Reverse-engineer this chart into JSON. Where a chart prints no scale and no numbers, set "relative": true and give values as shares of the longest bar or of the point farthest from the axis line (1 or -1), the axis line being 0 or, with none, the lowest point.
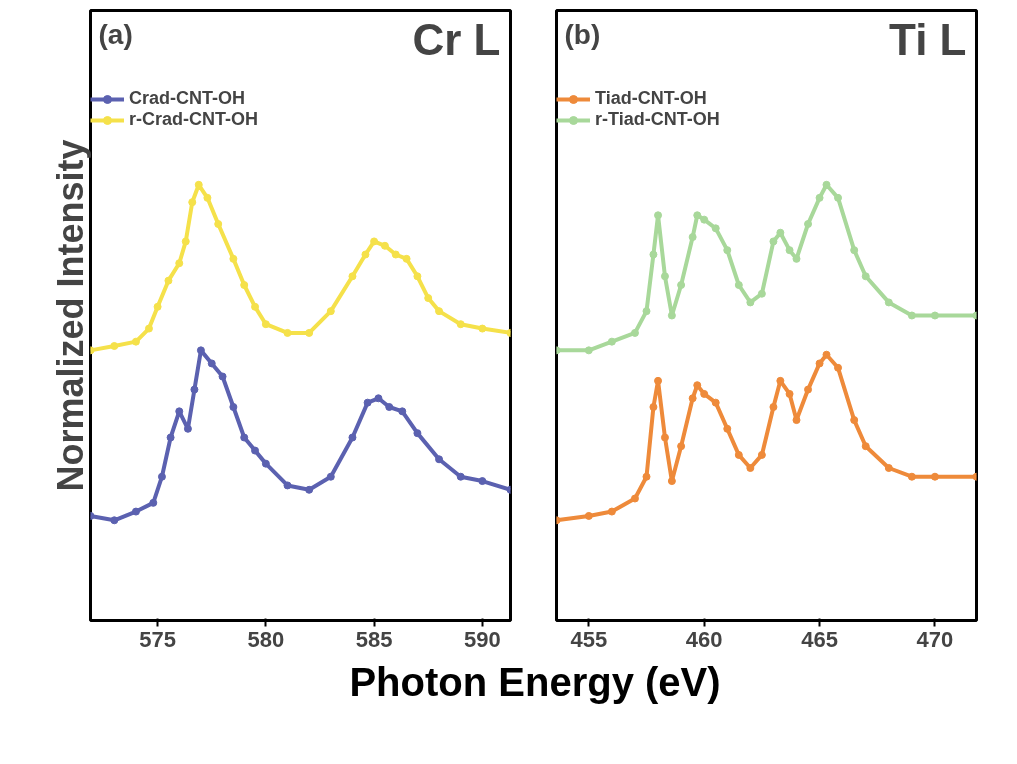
{
  "chart_data": [
    {
      "type": "line",
      "title": "Cr L",
      "annotations": [
        "(a)"
      ],
      "ylabel": "Normalized Intensity",
      "xlabel": "Photon Energy (eV)",
      "relative": true,
      "marker": "circle",
      "legend": "top left",
      "grid": false,
      "xlim": [
        571.9,
        591.3
      ],
      "xticks": [
        575,
        580,
        585,
        590
      ],
      "series": [
        {
          "name": "Crad-CNT-OH",
          "color": "#5b61b0",
          "x": [
            571.9,
            573,
            574,
            574.8,
            575.2,
            575.6,
            576,
            576.4,
            576.7,
            577,
            577.5,
            578,
            578.5,
            579,
            579.5,
            580,
            581,
            582,
            583,
            584,
            584.7,
            585.2,
            585.7,
            586.3,
            587,
            588,
            589,
            590,
            591.3
          ],
          "values": [
            0.24,
            0.23,
            0.25,
            0.27,
            0.33,
            0.42,
            0.48,
            0.44,
            0.53,
            0.62,
            0.59,
            0.56,
            0.49,
            0.42,
            0.39,
            0.36,
            0.31,
            0.3,
            0.33,
            0.42,
            0.5,
            0.51,
            0.49,
            0.48,
            0.43,
            0.37,
            0.33,
            0.32,
            0.3
          ]
        },
        {
          "name": "r-Crad-CNT-OH",
          "color": "#f5e14a",
          "x": [
            571.9,
            573,
            574,
            574.6,
            575,
            575.5,
            576,
            576.3,
            576.6,
            576.9,
            577.3,
            577.8,
            578.5,
            579,
            579.5,
            580,
            581,
            582,
            583,
            584,
            584.6,
            585,
            585.5,
            586,
            586.5,
            587,
            587.5,
            588,
            589,
            590,
            591.3
          ],
          "values": [
            0.62,
            0.63,
            0.64,
            0.67,
            0.72,
            0.78,
            0.82,
            0.87,
            0.96,
            1.0,
            0.97,
            0.91,
            0.83,
            0.77,
            0.72,
            0.68,
            0.66,
            0.66,
            0.71,
            0.79,
            0.84,
            0.87,
            0.86,
            0.84,
            0.83,
            0.79,
            0.74,
            0.71,
            0.68,
            0.67,
            0.66
          ]
        }
      ]
    },
    {
      "type": "line",
      "title": "Ti L",
      "annotations": [
        "(b)"
      ],
      "relative": true,
      "marker": "circle",
      "legend": "top left",
      "grid": false,
      "xlim": [
        453.6,
        471.8
      ],
      "xticks": [
        455,
        460,
        465,
        470
      ],
      "series": [
        {
          "name": "Tiad-CNT-OH",
          "color": "#ee8a3a",
          "x": [
            453.6,
            455,
            456,
            457,
            457.5,
            457.8,
            458,
            458.3,
            458.6,
            459,
            459.5,
            459.7,
            460,
            460.5,
            461,
            461.5,
            462,
            462.5,
            463,
            463.3,
            463.7,
            464,
            464.5,
            465,
            465.3,
            465.8,
            466.5,
            467,
            468,
            469,
            470,
            471.8
          ],
          "values": [
            0.23,
            0.24,
            0.25,
            0.28,
            0.33,
            0.49,
            0.55,
            0.42,
            0.32,
            0.4,
            0.51,
            0.54,
            0.52,
            0.5,
            0.44,
            0.38,
            0.35,
            0.38,
            0.49,
            0.55,
            0.52,
            0.46,
            0.53,
            0.59,
            0.61,
            0.58,
            0.46,
            0.4,
            0.35,
            0.33,
            0.33,
            0.33
          ]
        },
        {
          "name": "r-Tiad-CNT-OH",
          "color": "#a8d89a",
          "x": [
            453.6,
            455,
            456,
            457,
            457.5,
            457.8,
            458,
            458.3,
            458.6,
            459,
            459.5,
            459.7,
            460,
            460.5,
            461,
            461.5,
            462,
            462.5,
            463,
            463.3,
            463.7,
            464,
            464.5,
            465,
            465.3,
            465.8,
            466.5,
            467,
            468,
            469,
            470,
            471.8
          ],
          "values": [
            0.62,
            0.62,
            0.64,
            0.66,
            0.71,
            0.84,
            0.93,
            0.79,
            0.7,
            0.77,
            0.88,
            0.93,
            0.92,
            0.9,
            0.85,
            0.77,
            0.73,
            0.75,
            0.87,
            0.89,
            0.85,
            0.83,
            0.91,
            0.97,
            1.0,
            0.97,
            0.85,
            0.79,
            0.73,
            0.7,
            0.7,
            0.7
          ]
        }
      ]
    }
  ]
}
